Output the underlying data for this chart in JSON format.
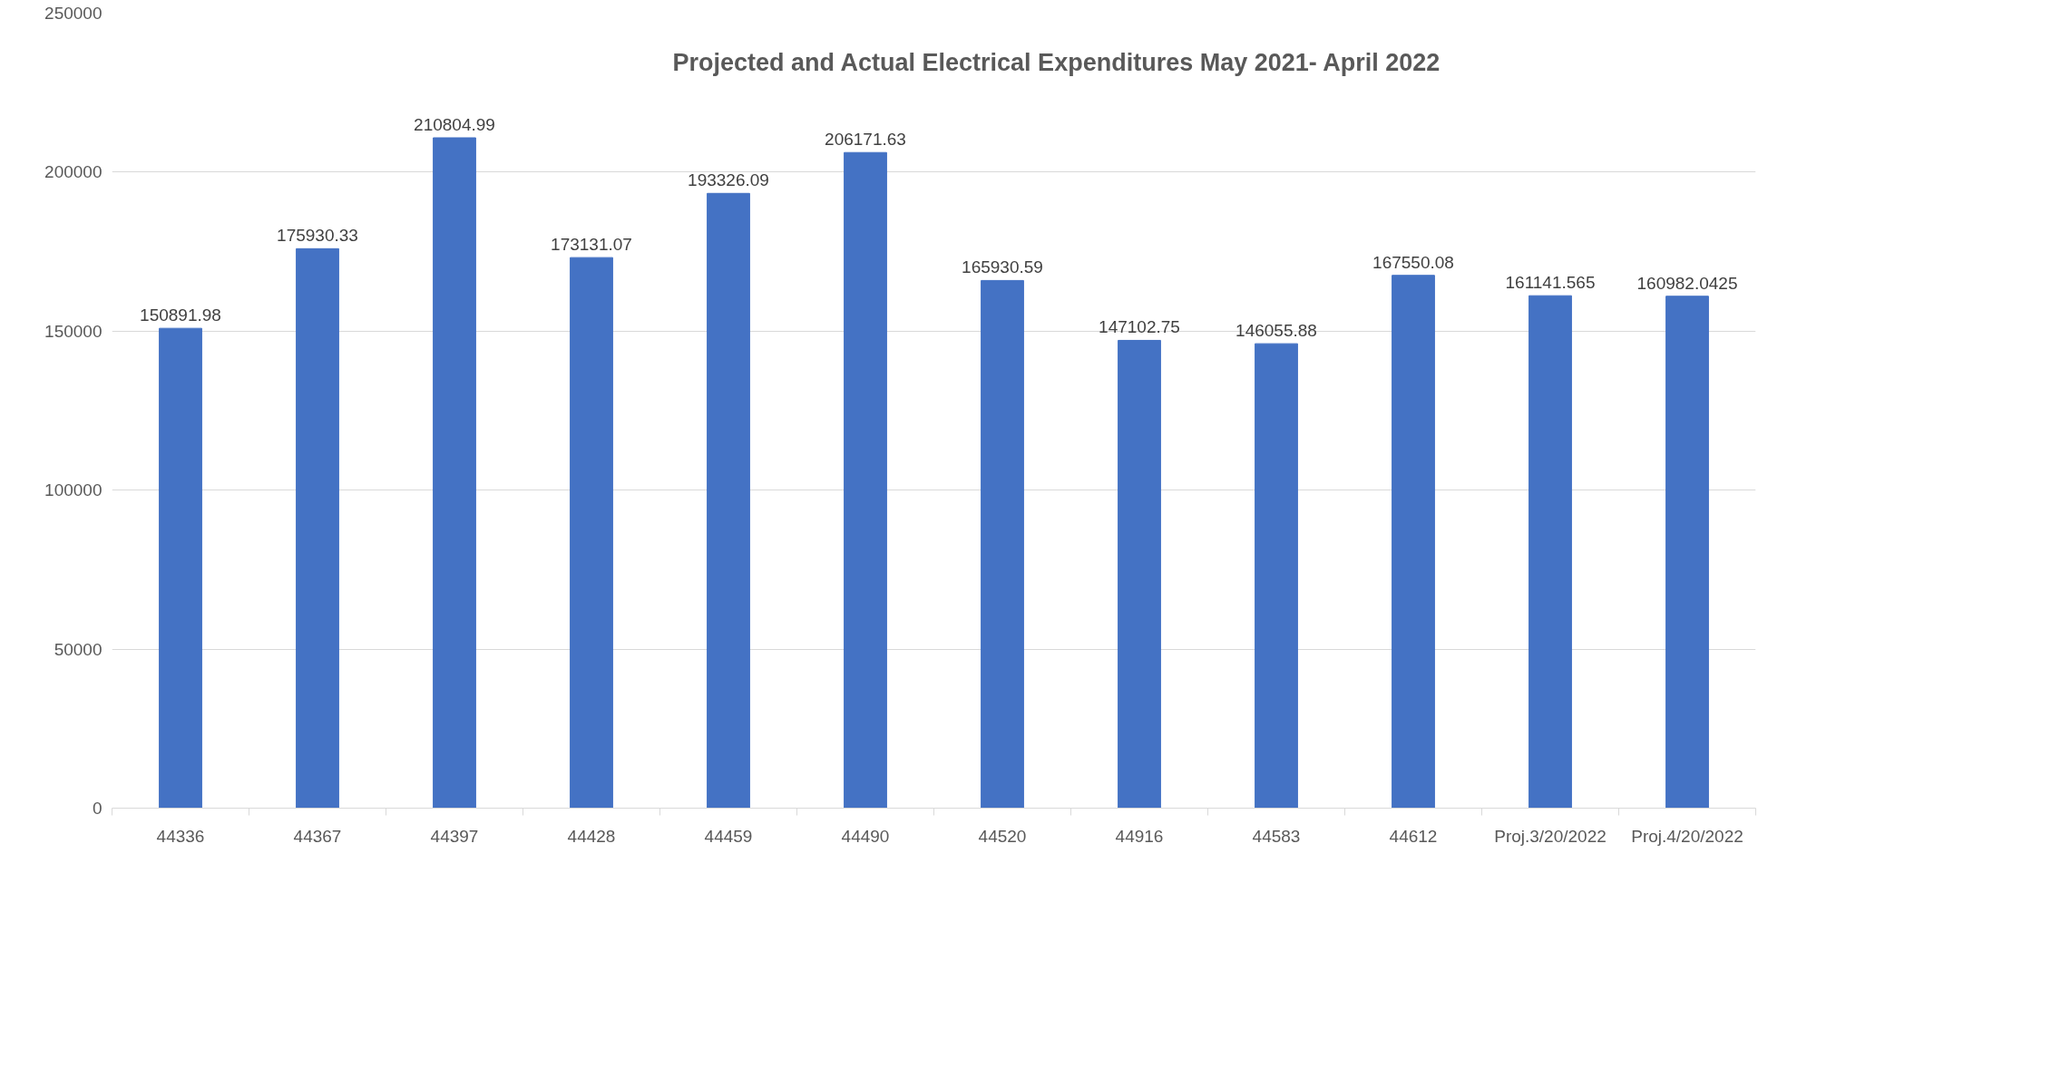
{
  "chart_data": {
    "type": "bar",
    "title": "Projected and Actual Electrical Expenditures May 2021- April 2022",
    "categories": [
      "44336",
      "44367",
      "44397",
      "44428",
      "44459",
      "44490",
      "44520",
      "44916",
      "44583",
      "44612",
      "Proj.3/20/2022",
      "Proj.4/20/2022"
    ],
    "values": [
      150891.98,
      175930.33,
      210804.99,
      173131.07,
      193326.09,
      206171.63,
      165930.59,
      147102.75,
      146055.88,
      167550.08,
      161141.565,
      160982.0425
    ],
    "color": "#4472c4",
    "ylim": [
      0,
      250000
    ],
    "yticks": [
      0,
      50000,
      100000,
      150000,
      200000,
      250000
    ],
    "grid": "y",
    "data_labels": true
  }
}
